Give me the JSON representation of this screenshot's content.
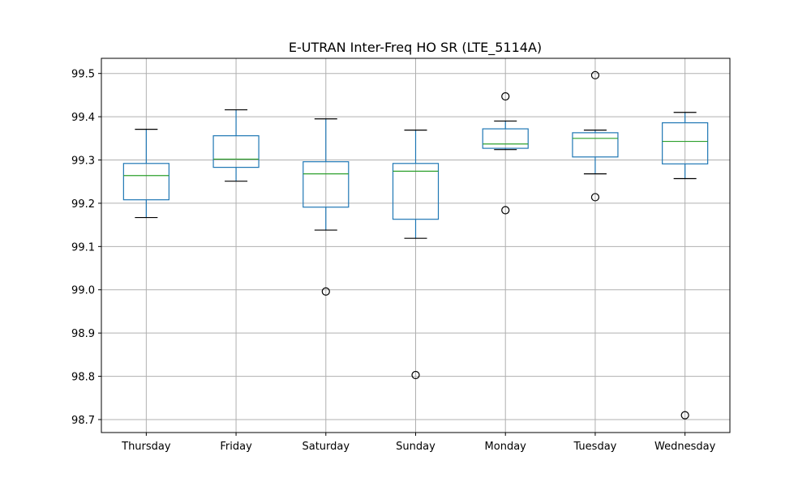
{
  "chart_data": {
    "type": "box",
    "title": "E-UTRAN Inter-Freq HO SR (LTE_5114A)",
    "xlabel": "",
    "ylabel": "",
    "ylim": [
      98.67,
      99.535
    ],
    "yticks": [
      98.7,
      98.8,
      98.9,
      99.0,
      99.1,
      99.2,
      99.3,
      99.4,
      99.5
    ],
    "ytick_labels": [
      "98.7",
      "98.8",
      "98.9",
      "99.0",
      "99.1",
      "99.2",
      "99.3",
      "99.4",
      "99.5"
    ],
    "grid": true,
    "categories": [
      "Thursday",
      "Friday",
      "Saturday",
      "Sunday",
      "Monday",
      "Tuesday",
      "Wednesday"
    ],
    "boxes": [
      {
        "category": "Thursday",
        "whisker_low": 99.167,
        "q1": 99.208,
        "median": 99.264,
        "q3": 99.292,
        "whisker_high": 99.371,
        "fliers": []
      },
      {
        "category": "Friday",
        "whisker_low": 99.251,
        "q1": 99.283,
        "median": 99.302,
        "q3": 99.356,
        "whisker_high": 99.416,
        "fliers": []
      },
      {
        "category": "Saturday",
        "whisker_low": 99.138,
        "q1": 99.191,
        "median": 99.268,
        "q3": 99.296,
        "whisker_high": 99.395,
        "fliers": [
          98.996
        ]
      },
      {
        "category": "Sunday",
        "whisker_low": 99.119,
        "q1": 99.163,
        "median": 99.274,
        "q3": 99.292,
        "whisker_high": 99.369,
        "fliers": [
          98.803
        ]
      },
      {
        "category": "Monday",
        "whisker_low": 99.324,
        "q1": 99.327,
        "median": 99.337,
        "q3": 99.372,
        "whisker_high": 99.39,
        "fliers": [
          99.447,
          99.184
        ]
      },
      {
        "category": "Tuesday",
        "whisker_low": 99.268,
        "q1": 99.307,
        "median": 99.35,
        "q3": 99.363,
        "whisker_high": 99.369,
        "fliers": [
          99.496,
          99.214
        ]
      },
      {
        "category": "Wednesday",
        "whisker_low": 99.257,
        "q1": 99.291,
        "median": 99.343,
        "q3": 99.386,
        "whisker_high": 99.41,
        "fliers": [
          98.71
        ]
      }
    ],
    "colors": {
      "box": "#1f77b4",
      "median": "#2ca02c",
      "cap": "#000000",
      "flier": "#000000",
      "grid": "#b0b0b0"
    }
  }
}
